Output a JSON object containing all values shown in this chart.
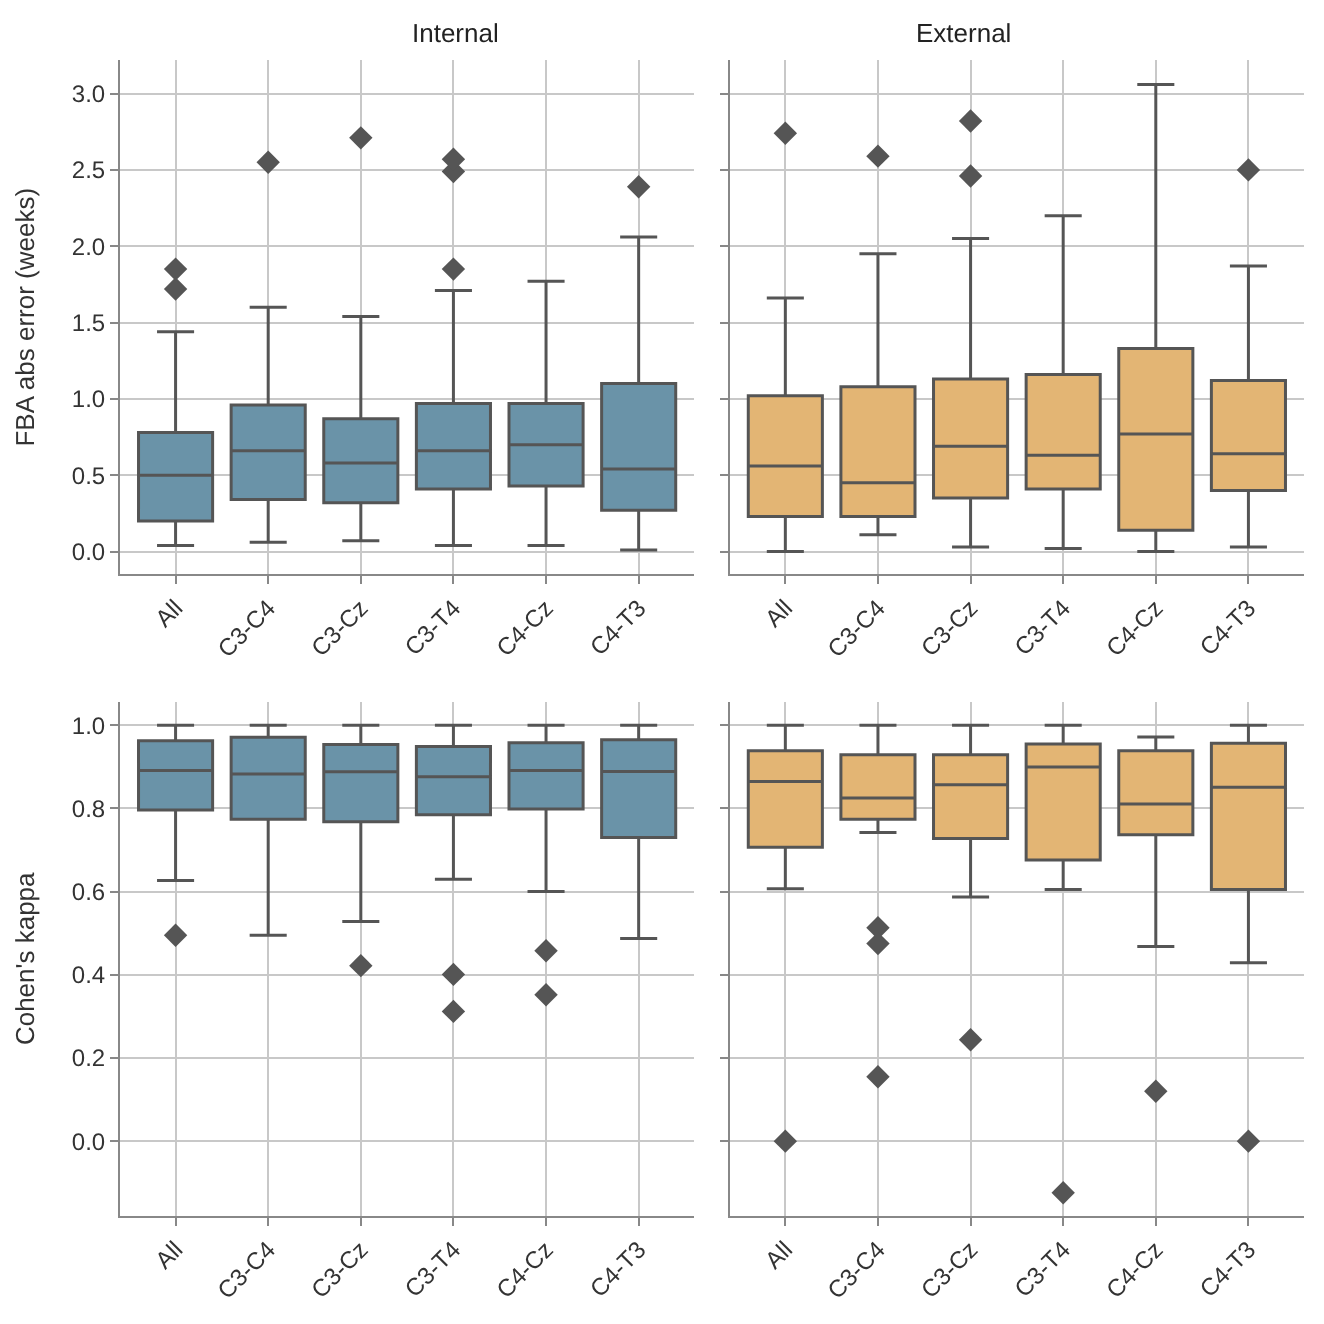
{
  "chart_data": [
    {
      "type": "box",
      "title": "Internal",
      "ylabel": "FBA abs error (weeks)",
      "categories": [
        "All",
        "C3-C4",
        "C3-Cz",
        "C3-T4",
        "C4-Cz",
        "C4-T3"
      ],
      "color": "#6a93a8",
      "marker": "diamond",
      "grid": true,
      "ylim": [
        -0.15,
        3.22
      ],
      "yticks": [
        {
          "value": 0,
          "label": "0.0"
        },
        0.5,
        {
          "value": 1,
          "label": "1.0"
        },
        1.5,
        {
          "value": 2,
          "label": "2.0"
        },
        2.5,
        {
          "value": 3,
          "label": "3.0"
        }
      ],
      "boxes": [
        {
          "low": 0.04,
          "q1": 0.2,
          "median": 0.5,
          "q3": 0.78,
          "high": 1.44,
          "outliers": [
            1.72,
            1.85
          ]
        },
        {
          "low": 0.06,
          "q1": 0.34,
          "median": 0.66,
          "q3": 0.96,
          "high": 1.6,
          "outliers": [
            2.55
          ]
        },
        {
          "low": 0.07,
          "q1": 0.32,
          "median": 0.58,
          "q3": 0.87,
          "high": 1.54,
          "outliers": [
            2.71
          ]
        },
        {
          "low": 0.04,
          "q1": 0.41,
          "median": 0.66,
          "q3": 0.97,
          "high": 1.71,
          "outliers": [
            1.85,
            2.49,
            2.57
          ]
        },
        {
          "low": 0.04,
          "q1": 0.43,
          "median": 0.7,
          "q3": 0.97,
          "high": 1.77
        },
        {
          "low": 0.01,
          "q1": 0.27,
          "median": 0.54,
          "q3": 1.1,
          "high": 2.06,
          "outliers": [
            2.39
          ]
        }
      ]
    },
    {
      "type": "box",
      "title": "External",
      "categories": [
        "All",
        "C3-C4",
        "C3-Cz",
        "C3-T4",
        "C4-Cz",
        "C4-T3"
      ],
      "color": "#e3b574",
      "marker": "diamond",
      "grid": true,
      "tick_labels": "x",
      "ylim": [
        -0.15,
        3.22
      ],
      "yticks": [
        0,
        0.5,
        1,
        1.5,
        2,
        2.5,
        3
      ],
      "boxes": [
        {
          "low": 0.0,
          "q1": 0.23,
          "median": 0.56,
          "q3": 1.02,
          "high": 1.66,
          "outliers": [
            2.74
          ]
        },
        {
          "low": 0.11,
          "q1": 0.23,
          "median": 0.45,
          "q3": 1.08,
          "high": 1.95,
          "outliers": [
            2.59
          ]
        },
        {
          "low": 0.03,
          "q1": 0.35,
          "median": 0.69,
          "q3": 1.13,
          "high": 2.05,
          "outliers": [
            2.46,
            2.82
          ]
        },
        {
          "low": 0.02,
          "q1": 0.41,
          "median": 0.63,
          "q3": 1.16,
          "high": 2.2
        },
        {
          "low": 0.0,
          "q1": 0.14,
          "median": 0.77,
          "q3": 1.33,
          "high": 3.06
        },
        {
          "low": 0.03,
          "q1": 0.4,
          "median": 0.64,
          "q3": 1.12,
          "high": 1.87,
          "outliers": [
            2.5
          ]
        }
      ]
    },
    {
      "type": "box",
      "ylabel": "Cohen's kappa",
      "categories": [
        "All",
        "C3-C4",
        "C3-Cz",
        "C3-T4",
        "C4-Cz",
        "C4-T3"
      ],
      "color": "#6a93a8",
      "marker": "diamond",
      "grid": true,
      "ylim": [
        -0.18,
        1.057
      ],
      "yticks": [
        {
          "value": 0,
          "label": "0.0"
        },
        0.2,
        0.4,
        0.6,
        0.8,
        {
          "value": 1,
          "label": "1.0"
        }
      ],
      "boxes": [
        {
          "low": 0.627,
          "q1": 0.796,
          "median": 0.891,
          "q3": 0.963,
          "high": 1.0,
          "outliers": [
            0.495
          ]
        },
        {
          "low": 0.495,
          "q1": 0.774,
          "median": 0.883,
          "q3": 0.971,
          "high": 1.0
        },
        {
          "low": 0.528,
          "q1": 0.768,
          "median": 0.888,
          "q3": 0.954,
          "high": 1.0,
          "outliers": [
            0.422
          ]
        },
        {
          "low": 0.63,
          "q1": 0.785,
          "median": 0.876,
          "q3": 0.949,
          "high": 1.0,
          "outliers": [
            0.401,
            0.312
          ]
        },
        {
          "low": 0.6,
          "q1": 0.799,
          "median": 0.891,
          "q3": 0.958,
          "high": 1.0,
          "outliers": [
            0.458,
            0.352
          ]
        },
        {
          "low": 0.487,
          "q1": 0.73,
          "median": 0.889,
          "q3": 0.965,
          "high": 1.0
        }
      ]
    },
    {
      "type": "box",
      "categories": [
        "All",
        "C3-C4",
        "C3-Cz",
        "C3-T4",
        "C4-Cz",
        "C4-T3"
      ],
      "color": "#e3b574",
      "marker": "diamond",
      "grid": true,
      "tick_labels": "x",
      "ylim": [
        -0.18,
        1.057
      ],
      "yticks": [
        0,
        0.2,
        0.4,
        0.6,
        0.8,
        1
      ],
      "boxes": [
        {
          "low": 0.607,
          "q1": 0.707,
          "median": 0.865,
          "q3": 0.939,
          "high": 1.0,
          "outliers": [
            0.0
          ]
        },
        {
          "low": 0.742,
          "q1": 0.774,
          "median": 0.825,
          "q3": 0.929,
          "high": 1.0,
          "outliers": [
            0.513,
            0.475,
            0.155
          ]
        },
        {
          "low": 0.587,
          "q1": 0.728,
          "median": 0.857,
          "q3": 0.929,
          "high": 1.0,
          "outliers": [
            0.244
          ]
        },
        {
          "low": 0.605,
          "q1": 0.676,
          "median": 0.9,
          "q3": 0.955,
          "high": 1.0,
          "outliers": [
            -0.124
          ]
        },
        {
          "low": 0.468,
          "q1": 0.737,
          "median": 0.811,
          "q3": 0.939,
          "high": 0.972,
          "outliers": [
            0.12
          ]
        },
        {
          "low": 0.429,
          "q1": 0.605,
          "median": 0.851,
          "q3": 0.957,
          "high": 1.0,
          "outliers": [
            0.0
          ]
        }
      ]
    }
  ]
}
